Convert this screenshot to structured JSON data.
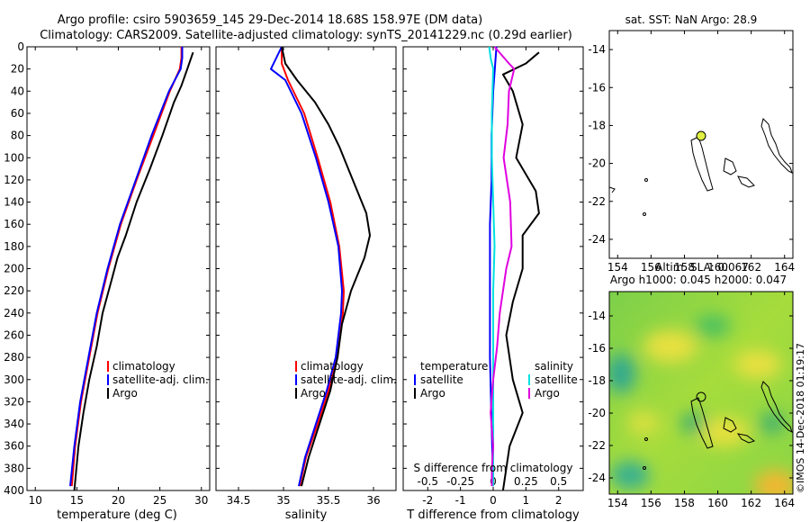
{
  "header": {
    "title_line1": "Argo profile: csiro 5903659_145 29-Dec-2014 18.68S 158.97E (DM data)",
    "title_line2": "Climatology: CARS2009. Satellite-adjusted climatology: synTS_20141229.nc (0.29d earlier)"
  },
  "watermark": "©IMOS 14-Dec-2018 01:19:17",
  "colors": {
    "red": "#ff0000",
    "blue": "#0000ff",
    "black": "#000000",
    "cyan": "#00e0e0",
    "magenta": "#e000e0",
    "yellow": "#ffff00"
  },
  "chart_data": [
    {
      "id": "temperature",
      "type": "line",
      "xlabel": "temperature (deg C)",
      "xlim": [
        9,
        31
      ],
      "ylim": [
        0,
        400
      ],
      "xticks": [
        10,
        15,
        20,
        25,
        30
      ],
      "yticks": [
        0,
        20,
        40,
        60,
        80,
        100,
        120,
        140,
        160,
        180,
        200,
        220,
        240,
        260,
        280,
        300,
        320,
        340,
        360,
        380,
        400
      ],
      "legend": [
        "climatology",
        "satellite-adj. clim.",
        "Argo"
      ],
      "series": [
        {
          "name": "climatology",
          "color": "#ff0000",
          "x": [
            27.6,
            27.6,
            27.4,
            26.2,
            24.2,
            22.2,
            20.3,
            18.8,
            17.5,
            16.5,
            15.5,
            14.8,
            14.4
          ],
          "y": [
            0,
            10,
            20,
            40,
            80,
            120,
            160,
            200,
            240,
            280,
            320,
            360,
            396
          ]
        },
        {
          "name": "satellite-adj. clim.",
          "color": "#0000ff",
          "x": [
            27.7,
            27.7,
            27.5,
            26.1,
            24.0,
            22.1,
            20.2,
            18.7,
            17.4,
            16.4,
            15.4,
            14.7,
            14.2
          ],
          "y": [
            0,
            10,
            20,
            40,
            80,
            120,
            160,
            200,
            240,
            280,
            320,
            360,
            396
          ]
        },
        {
          "name": "Argo",
          "color": "#000000",
          "x": [
            29.0,
            28.3,
            27.6,
            26.7,
            25.3,
            23.8,
            22.2,
            20.9,
            19.9,
            19.2,
            18.1,
            17.4,
            16.5,
            15.8,
            15.2,
            14.7
          ],
          "y": [
            5,
            20,
            35,
            50,
            80,
            110,
            140,
            170,
            190,
            210,
            240,
            270,
            300,
            330,
            360,
            400
          ]
        }
      ]
    },
    {
      "id": "salinity",
      "type": "line",
      "xlabel": "salinity",
      "xlim": [
        34.25,
        36.25
      ],
      "ylim": [
        0,
        400
      ],
      "xticks": [
        34.5,
        35,
        35.5,
        36
      ],
      "legend": [
        "climatology",
        "satellite-adj. clim.",
        "Argo"
      ],
      "series": [
        {
          "name": "climatology",
          "color": "#ff0000",
          "x": [
            34.98,
            34.98,
            35.05,
            35.23,
            35.38,
            35.52,
            35.62,
            35.67,
            35.66,
            35.6,
            35.5,
            35.38,
            35.25,
            35.18
          ],
          "y": [
            0,
            15,
            30,
            60,
            100,
            140,
            180,
            220,
            240,
            280,
            310,
            340,
            370,
            396
          ]
        },
        {
          "name": "satellite-adj. clim.",
          "color": "#0000ff",
          "x": [
            34.98,
            34.86,
            35.02,
            35.2,
            35.36,
            35.5,
            35.61,
            35.65,
            35.64,
            35.58,
            35.48,
            35.36,
            35.24,
            35.17
          ],
          "y": [
            0,
            20,
            30,
            60,
            100,
            140,
            180,
            220,
            240,
            280,
            310,
            340,
            370,
            396
          ]
        },
        {
          "name": "Argo",
          "color": "#000000",
          "x": [
            34.98,
            35.02,
            35.15,
            35.35,
            35.5,
            35.62,
            35.72,
            35.82,
            35.92,
            35.96,
            35.9,
            35.75,
            35.65,
            35.6,
            35.52,
            35.4,
            35.28,
            35.2
          ],
          "y": [
            0,
            15,
            30,
            50,
            70,
            90,
            110,
            130,
            150,
            170,
            190,
            220,
            250,
            280,
            310,
            340,
            370,
            396
          ]
        }
      ]
    },
    {
      "id": "difference",
      "type": "line",
      "xlabel": "T difference from climatology",
      "xlabel2": "S difference from climatology",
      "xlim": [
        -2.75,
        2.75
      ],
      "ylim": [
        0,
        400
      ],
      "xticks": [
        -2,
        -1,
        0,
        1,
        2
      ],
      "xticks2": [
        -0.5,
        -0.25,
        0,
        0.25,
        0.5
      ],
      "xlim2": [
        -0.6875,
        0.6875
      ],
      "legend_temperature": {
        "header": "temperature",
        "items": [
          "satellite",
          "Argo"
        ]
      },
      "legend_salinity": {
        "header": "salinity",
        "items": [
          "satellite",
          "Argo"
        ]
      },
      "series": [
        {
          "name": "T satellite",
          "color": "#0000ff",
          "x": [
            0.1,
            0.05,
            0.0,
            -0.05,
            -0.05,
            -0.1,
            -0.1,
            -0.1,
            -0.1,
            -0.05,
            0.0
          ],
          "y": [
            0,
            20,
            40,
            80,
            120,
            160,
            200,
            240,
            280,
            340,
            396
          ]
        },
        {
          "name": "T Argo",
          "color": "#000000",
          "x": [
            1.4,
            1.0,
            0.3,
            0.6,
            0.9,
            0.7,
            1.3,
            1.4,
            0.9,
            0.9,
            0.6,
            0.4,
            0.6,
            0.9,
            0.5,
            0.3
          ],
          "y": [
            5,
            15,
            25,
            40,
            70,
            100,
            130,
            150,
            170,
            200,
            230,
            260,
            300,
            330,
            360,
            400
          ]
        },
        {
          "name": "S satellite",
          "color": "#00e0e0",
          "x": [
            -0.03,
            -0.02,
            0.0,
            -0.01,
            -0.01,
            0.0,
            0.01,
            0.0,
            0.0,
            0.0,
            0.0
          ],
          "y": [
            0,
            10,
            20,
            60,
            100,
            140,
            180,
            220,
            260,
            320,
            396
          ]
        },
        {
          "name": "S Argo",
          "color": "#e000e0",
          "x": [
            0.01,
            0.12,
            0.16,
            0.12,
            0.11,
            0.08,
            0.13,
            0.14,
            0.1,
            0.05,
            0.03,
            0.0,
            -0.02,
            0.0,
            -0.01,
            -0.01
          ],
          "y": [
            0,
            15,
            20,
            40,
            70,
            100,
            140,
            180,
            200,
            240,
            270,
            300,
            330,
            360,
            380,
            396
          ]
        }
      ]
    },
    {
      "id": "sst_map",
      "type": "map",
      "title": "sat. SST: NaN Argo: 28.9",
      "xlim": [
        153.5,
        164.5
      ],
      "ylim": [
        -25,
        -13
      ],
      "xticks": [
        154,
        156,
        158,
        160,
        162,
        164
      ],
      "yticks": [
        -14,
        -16,
        -18,
        -20,
        -22,
        -24
      ],
      "argo_position": {
        "lon": 158.97,
        "lat": -18.68
      }
    },
    {
      "id": "sla_map",
      "type": "map",
      "title": "Altim. SLA: 0.067",
      "subtitle": "Argo h1000: 0.045 h2000: 0.047",
      "xlim": [
        153.5,
        164.5
      ],
      "ylim": [
        -25,
        -12.5
      ],
      "xticks": [
        154,
        156,
        158,
        160,
        162,
        164
      ],
      "yticks": [
        -14,
        -16,
        -18,
        -20,
        -22,
        -24
      ],
      "argo_position": {
        "lon": 158.97,
        "lat": -18.68
      }
    }
  ]
}
